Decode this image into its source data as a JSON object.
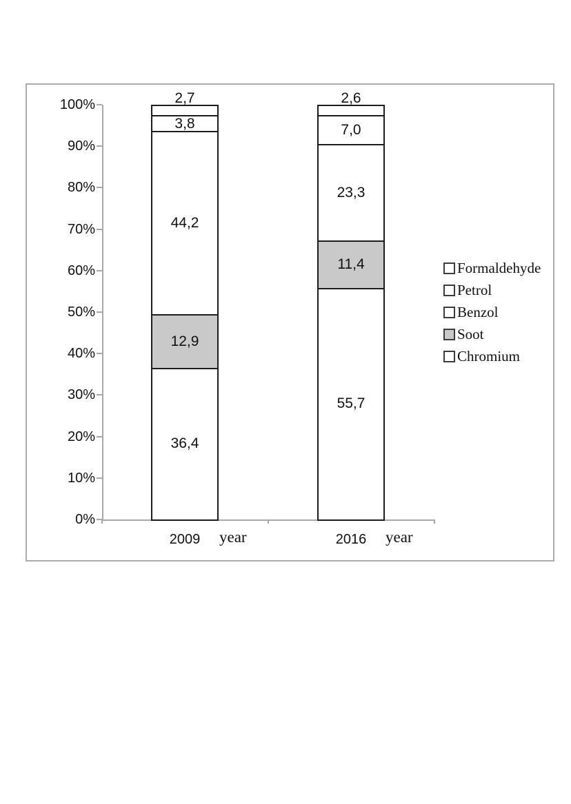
{
  "figure": {
    "background": "#ffffff",
    "frame_border_color": "#ababab"
  },
  "chart_data": {
    "type": "bar",
    "subtype": "stacked-100-percent-column",
    "title": "",
    "xlabel": "",
    "ylabel": "",
    "grid": false,
    "categories": [
      {
        "label": "2009",
        "axis_suffix": "year"
      },
      {
        "label": "2016",
        "axis_suffix": "year"
      }
    ],
    "series_bottom_to_top": [
      {
        "name": "Chromium",
        "fill": "#ffffff",
        "values": [
          36.4,
          55.7
        ],
        "labels": [
          "36,4",
          "55,7"
        ],
        "label_outside": false
      },
      {
        "name": "Soot",
        "fill": "#c9c9c9",
        "values": [
          12.9,
          11.4
        ],
        "labels": [
          "12,9",
          "11,4"
        ],
        "label_outside": false
      },
      {
        "name": "Benzol",
        "fill": "#ffffff",
        "values": [
          44.2,
          23.3
        ],
        "labels": [
          "44,2",
          "23,3"
        ],
        "label_outside": false
      },
      {
        "name": "Petrol",
        "fill": "#ffffff",
        "values": [
          3.8,
          7.0
        ],
        "labels": [
          "3,8",
          "7,0"
        ],
        "label_outside": false
      },
      {
        "name": "Formaldehyde",
        "fill": "#ffffff",
        "values": [
          2.7,
          2.6
        ],
        "labels": [
          "2,7",
          "2,6"
        ],
        "label_outside": true
      }
    ],
    "legend": {
      "position": "right",
      "items": [
        {
          "label": "Formaldehyde",
          "fill": "#ffffff"
        },
        {
          "label": "Petrol",
          "fill": "#ffffff"
        },
        {
          "label": "Benzol",
          "fill": "#ffffff"
        },
        {
          "label": "Soot",
          "fill": "#c9c9c9"
        },
        {
          "label": "Chromium",
          "fill": "#ffffff"
        }
      ]
    },
    "y_axis": {
      "min": 0,
      "max": 100,
      "tick_labels": [
        "0%",
        "10%",
        "20%",
        "30%",
        "40%",
        "50%",
        "60%",
        "70%",
        "80%",
        "90%",
        "100%"
      ]
    },
    "colors": {
      "bar_border": "#1c1c1c",
      "axis_line": "#a8a8a8",
      "soot_fill": "#c9c9c9",
      "text": "#111111"
    }
  }
}
